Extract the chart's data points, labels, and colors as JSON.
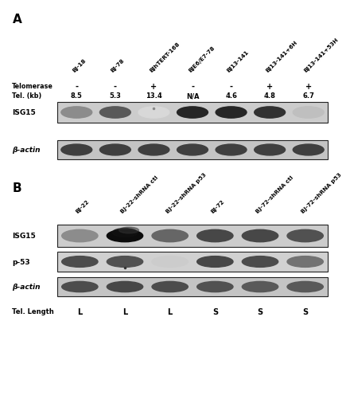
{
  "panel_A_label": "A",
  "panel_B_label": "B",
  "panel_A_col_labels": [
    "BJ-18",
    "BJ-78",
    "BJhTERT-168",
    "BJE6/E7-78",
    "BJ13-141",
    "BJ13-141+6H",
    "BJ13-141+53H"
  ],
  "panel_A_telomerase": [
    "-",
    "-",
    "+",
    "-",
    "-",
    "+",
    "+"
  ],
  "panel_A_tel_kb": [
    "8.5",
    "5.3",
    "13.4",
    "N/A",
    "4.6",
    "4.8",
    "6.7"
  ],
  "panel_A_row_labels": [
    "ISG15",
    "β-actin"
  ],
  "panel_B_col_labels": [
    "BJ-22",
    "BJ-22-shRNA ctl",
    "BJ-22-shRNA p53",
    "BJ-72",
    "BJ-72-shRNA ctl",
    "BJ-72-shRNA p53"
  ],
  "panel_B_row_labels": [
    "ISG15",
    "p-53",
    "β-actin"
  ],
  "panel_B_tel_length_label": "Tel. Length",
  "panel_B_tel_length_values": [
    "L",
    "L",
    "L",
    "S",
    "S",
    "S"
  ],
  "telomerase_label": "Telomerase",
  "tel_kb_label": "Tel. (kb)",
  "bg_color": "#ffffff",
  "isg15_A_intensities": [
    0.45,
    0.65,
    0.15,
    0.85,
    0.85,
    0.8,
    0.25
  ],
  "bactin_A_intensities": [
    0.75,
    0.75,
    0.75,
    0.75,
    0.75,
    0.75,
    0.75
  ],
  "isg15_B_intensities": [
    0.45,
    0.95,
    0.6,
    0.72,
    0.72,
    0.68
  ],
  "p53_B_intensities": [
    0.7,
    0.68,
    0.2,
    0.72,
    0.7,
    0.55
  ],
  "bactin_B_intensities": [
    0.7,
    0.72,
    0.7,
    0.68,
    0.65,
    0.65
  ]
}
